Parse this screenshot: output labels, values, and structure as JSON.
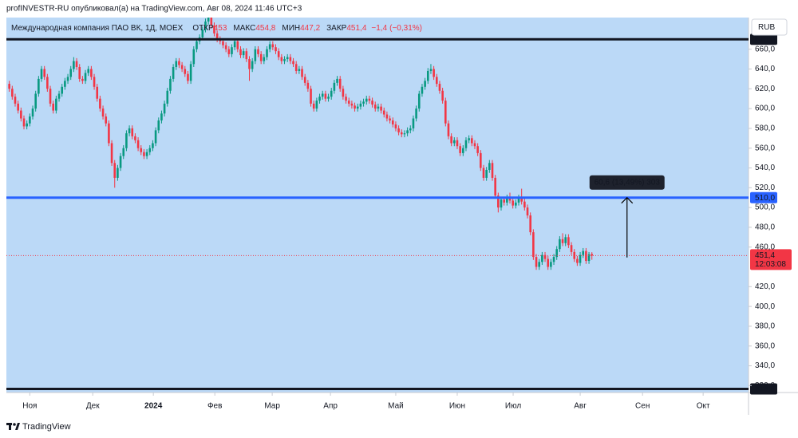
{
  "publisher": "profINVESTR-RU опубликовал(а) на TradingView.com, Авг 08, 2024 11:46 UTC+3",
  "brand": "TradingView",
  "chart_data": {
    "type": "candlestick",
    "header": {
      "symbol": "Международная компания ПАО ВК, 1Д, MOEX",
      "names": [
        "ОТКР",
        "МАКС",
        "МИН",
        "ЗАКР"
      ],
      "values": [
        453,
        454.8,
        447.2,
        451.4
      ],
      "value_labels": [
        "453",
        "454,8",
        "447,2",
        "451,4"
      ],
      "change": {
        "value": -1.4,
        "label": "−1,4"
      },
      "change_pct": {
        "value": -0.31,
        "label": "(−0,31%)"
      }
    },
    "currency": "RUB",
    "background": "#bbd9f7",
    "up_color": "#089981",
    "down_color": "#f23645",
    "x": [
      -7,
      -6,
      -5,
      -4,
      -3,
      -2,
      -1,
      0,
      1,
      2,
      3,
      4,
      5,
      6,
      7,
      8,
      9,
      10,
      11,
      12,
      13,
      14,
      15,
      16,
      17,
      18,
      19,
      20,
      21,
      22,
      23,
      24,
      25,
      26,
      27,
      28,
      29,
      30,
      31,
      32,
      33,
      34,
      35,
      36,
      37,
      38,
      39,
      40,
      41,
      42,
      43,
      44,
      45,
      46,
      47,
      48,
      49,
      50,
      51,
      52,
      53,
      54,
      55,
      56,
      57,
      58,
      59,
      60,
      61,
      62,
      63,
      64,
      65,
      66,
      67,
      68,
      69,
      70,
      71,
      72,
      73,
      74,
      75,
      76,
      77,
      78,
      79,
      80,
      81,
      82,
      83,
      84,
      85,
      86,
      87,
      88,
      89,
      90,
      91,
      92,
      93,
      94,
      95,
      96,
      97,
      98,
      99,
      100,
      101,
      102,
      103,
      104,
      105,
      106,
      107,
      108,
      109,
      110,
      111,
      112,
      113,
      114,
      115,
      116,
      117,
      118,
      119,
      120,
      121,
      122,
      123,
      124,
      125,
      126,
      127,
      128,
      129,
      130,
      131,
      132,
      133,
      134,
      135,
      136,
      137,
      138,
      139,
      140,
      141,
      142,
      143,
      144,
      145,
      146,
      147,
      148,
      149,
      150,
      151,
      152,
      153,
      154,
      155,
      156,
      157,
      158,
      159,
      160,
      161,
      162,
      163,
      164,
      165,
      166,
      167,
      168,
      169,
      170,
      171,
      172,
      173,
      174,
      175,
      176,
      177,
      178,
      179,
      180,
      181,
      182,
      183,
      184,
      185,
      186,
      187,
      188,
      189,
      190,
      191,
      192
    ],
    "open": [
      625,
      620,
      612,
      605,
      598,
      590,
      582,
      585,
      592,
      600,
      615,
      630,
      640,
      632,
      620,
      605,
      598,
      610,
      615,
      622,
      628,
      632,
      640,
      648,
      642,
      630,
      628,
      636,
      640,
      632,
      622,
      610,
      600,
      592,
      585,
      565,
      545,
      530,
      540,
      552,
      560,
      575,
      580,
      572,
      568,
      560,
      556,
      552,
      556,
      560,
      565,
      578,
      588,
      595,
      605,
      618,
      630,
      642,
      648,
      644,
      640,
      635,
      628,
      645,
      660,
      668,
      672,
      680,
      688,
      692,
      684,
      676,
      670,
      668,
      664,
      660,
      655,
      662,
      668,
      660,
      654,
      658,
      650,
      640,
      648,
      660,
      655,
      648,
      652,
      660,
      665,
      662,
      658,
      652,
      648,
      650,
      652,
      648,
      645,
      638,
      640,
      632,
      626,
      620,
      605,
      600,
      608,
      612,
      615,
      610,
      612,
      618,
      626,
      630,
      620,
      612,
      608,
      605,
      603,
      600,
      602,
      605,
      607,
      610,
      608,
      604,
      600,
      602,
      598,
      594,
      590,
      588,
      584,
      580,
      576,
      574,
      575,
      578,
      580,
      590,
      600,
      615,
      622,
      628,
      638,
      640,
      632,
      625,
      618,
      608,
      585,
      572,
      565,
      568,
      562,
      555,
      560,
      568,
      570,
      565,
      562,
      555,
      540,
      530,
      538,
      545,
      530,
      512,
      500,
      508,
      505,
      510,
      507,
      502,
      505,
      510,
      506,
      500,
      492,
      475,
      450,
      440,
      445,
      452,
      448,
      440,
      445,
      450,
      458,
      468,
      464,
      470,
      462,
      455,
      448,
      444,
      452,
      456,
      446,
      453
    ],
    "high": [
      628,
      623,
      615,
      608,
      601,
      593,
      588,
      595,
      603,
      618,
      633,
      643,
      643,
      635,
      623,
      608,
      613,
      618,
      625,
      631,
      635,
      643,
      652,
      651,
      645,
      633,
      639,
      643,
      643,
      635,
      625,
      613,
      603,
      595,
      588,
      568,
      548,
      543,
      555,
      563,
      578,
      583,
      583,
      575,
      571,
      563,
      559,
      559,
      563,
      568,
      581,
      591,
      598,
      608,
      621,
      633,
      645,
      651,
      651,
      647,
      643,
      638,
      648,
      663,
      671,
      675,
      683,
      691,
      697,
      695,
      687,
      679,
      673,
      671,
      667,
      663,
      665,
      671,
      671,
      663,
      661,
      661,
      653,
      651,
      663,
      663,
      658,
      655,
      663,
      668,
      668,
      665,
      661,
      655,
      653,
      655,
      655,
      651,
      648,
      643,
      643,
      635,
      629,
      623,
      608,
      611,
      615,
      618,
      618,
      615,
      621,
      629,
      633,
      633,
      623,
      615,
      611,
      608,
      606,
      605,
      608,
      610,
      613,
      613,
      611,
      607,
      605,
      605,
      601,
      597,
      593,
      591,
      587,
      583,
      579,
      578,
      581,
      583,
      593,
      603,
      618,
      625,
      631,
      641,
      645,
      643,
      635,
      628,
      621,
      611,
      588,
      575,
      571,
      571,
      565,
      563,
      571,
      573,
      573,
      568,
      565,
      558,
      543,
      541,
      548,
      548,
      533,
      515,
      511,
      511,
      513,
      515,
      510,
      508,
      513,
      519,
      509,
      503,
      495,
      478,
      453,
      448,
      455,
      455,
      451,
      448,
      453,
      461,
      471,
      474,
      473,
      473,
      465,
      458,
      451,
      455,
      459,
      459,
      455,
      454.8
    ],
    "low": [
      617,
      609,
      602,
      595,
      587,
      579,
      579,
      582,
      589,
      597,
      612,
      627,
      629,
      617,
      602,
      595,
      595,
      607,
      612,
      619,
      625,
      629,
      637,
      639,
      627,
      625,
      625,
      633,
      629,
      619,
      607,
      597,
      589,
      582,
      562,
      542,
      520,
      527,
      537,
      549,
      557,
      572,
      569,
      565,
      557,
      553,
      549,
      549,
      553,
      557,
      562,
      575,
      585,
      592,
      602,
      615,
      627,
      639,
      641,
      637,
      632,
      625,
      625,
      642,
      657,
      665,
      669,
      677,
      685,
      681,
      673,
      667,
      665,
      661,
      657,
      652,
      652,
      659,
      657,
      651,
      651,
      647,
      628,
      637,
      645,
      652,
      645,
      645,
      649,
      657,
      659,
      655,
      649,
      645,
      645,
      647,
      645,
      642,
      635,
      635,
      629,
      623,
      617,
      602,
      597,
      597,
      605,
      609,
      607,
      607,
      609,
      615,
      623,
      617,
      609,
      605,
      602,
      600,
      597,
      597,
      599,
      602,
      604,
      605,
      601,
      597,
      597,
      595,
      591,
      587,
      585,
      581,
      577,
      573,
      571,
      571,
      572,
      575,
      577,
      587,
      597,
      612,
      619,
      625,
      635,
      629,
      622,
      615,
      605,
      582,
      569,
      562,
      562,
      559,
      552,
      552,
      557,
      565,
      562,
      559,
      552,
      537,
      527,
      527,
      535,
      527,
      509,
      495,
      497,
      502,
      502,
      504,
      499,
      499,
      502,
      503,
      497,
      489,
      472,
      447,
      437,
      437,
      442,
      445,
      437,
      437,
      442,
      447,
      455,
      461,
      461,
      459,
      452,
      445,
      441,
      441,
      449,
      443,
      443,
      447.2
    ],
    "close": [
      620,
      612,
      605,
      598,
      590,
      582,
      585,
      592,
      600,
      615,
      630,
      640,
      632,
      620,
      605,
      598,
      610,
      615,
      622,
      628,
      632,
      640,
      648,
      642,
      630,
      628,
      636,
      640,
      632,
      622,
      610,
      600,
      592,
      585,
      565,
      545,
      530,
      540,
      552,
      560,
      575,
      580,
      572,
      568,
      560,
      556,
      552,
      556,
      560,
      565,
      578,
      588,
      595,
      605,
      618,
      630,
      642,
      648,
      644,
      640,
      635,
      628,
      645,
      660,
      668,
      672,
      680,
      688,
      692,
      684,
      676,
      670,
      668,
      664,
      660,
      655,
      662,
      668,
      660,
      654,
      658,
      650,
      640,
      648,
      660,
      655,
      648,
      652,
      660,
      665,
      662,
      658,
      652,
      648,
      650,
      652,
      648,
      645,
      638,
      640,
      632,
      626,
      620,
      605,
      600,
      608,
      612,
      615,
      610,
      612,
      618,
      626,
      630,
      620,
      612,
      608,
      605,
      603,
      600,
      602,
      605,
      607,
      610,
      608,
      604,
      600,
      602,
      598,
      594,
      590,
      588,
      584,
      580,
      576,
      574,
      575,
      578,
      580,
      590,
      600,
      615,
      622,
      628,
      638,
      640,
      632,
      625,
      618,
      608,
      585,
      572,
      565,
      568,
      562,
      555,
      560,
      568,
      570,
      565,
      562,
      555,
      540,
      530,
      538,
      545,
      530,
      512,
      500,
      508,
      505,
      510,
      507,
      502,
      505,
      510,
      506,
      500,
      492,
      475,
      450,
      440,
      445,
      452,
      448,
      440,
      445,
      450,
      458,
      468,
      464,
      470,
      462,
      455,
      448,
      444,
      452,
      456,
      446,
      452.8,
      451.4
    ],
    "xlim": [
      -8,
      245.5
    ],
    "xticks": [
      {
        "value": 0,
        "label": "Ноя"
      },
      {
        "value": 21.5,
        "label": "Дек"
      },
      {
        "value": 42.2,
        "label": "2024"
      },
      {
        "value": 63.2,
        "label": "Фев"
      },
      {
        "value": 82.8,
        "label": "Мар"
      },
      {
        "value": 102.7,
        "label": "Апр"
      },
      {
        "value": 125,
        "label": "Май"
      },
      {
        "value": 146,
        "label": "Июн"
      },
      {
        "value": 165.1,
        "label": "Июл"
      },
      {
        "value": 188,
        "label": "Авг"
      },
      {
        "value": 209.3,
        "label": "Сен"
      },
      {
        "value": 230,
        "label": "Окт"
      }
    ],
    "ylim": [
      313,
      692
    ],
    "yticks": [
      {
        "value": 320,
        "label": "320,0"
      },
      {
        "value": 340,
        "label": "340,0"
      },
      {
        "value": 360,
        "label": "360,0"
      },
      {
        "value": 380,
        "label": "380,0"
      },
      {
        "value": 400,
        "label": "400,0"
      },
      {
        "value": 420,
        "label": "420,0"
      },
      {
        "value": 460,
        "label": "460,0"
      },
      {
        "value": 480,
        "label": "480,0"
      },
      {
        "value": 500,
        "label": "500,0"
      },
      {
        "value": 520,
        "label": "520,0"
      },
      {
        "value": 540,
        "label": "540,0"
      },
      {
        "value": 560,
        "label": "560,0"
      },
      {
        "value": 580,
        "label": "580,0"
      },
      {
        "value": 600,
        "label": "600,0"
      },
      {
        "value": 620,
        "label": "620,0"
      },
      {
        "value": 640,
        "label": "640,0"
      },
      {
        "value": 660,
        "label": "660,0"
      }
    ],
    "levels": [
      {
        "value": 670,
        "label": "670,0",
        "color": "#131722"
      },
      {
        "value": 510,
        "label": "510,0",
        "color": "#2962ff"
      },
      {
        "value": 316.6,
        "label": "316,6",
        "color": "#131722"
      }
    ],
    "last_price": {
      "value": 451.4,
      "label": "451,4",
      "countdown": "12:03:08",
      "color": "#f23645"
    },
    "annotation": {
      "text": "60,6 (13,49%) 303",
      "x": 204,
      "from": 449.5,
      "to": 510
    }
  }
}
